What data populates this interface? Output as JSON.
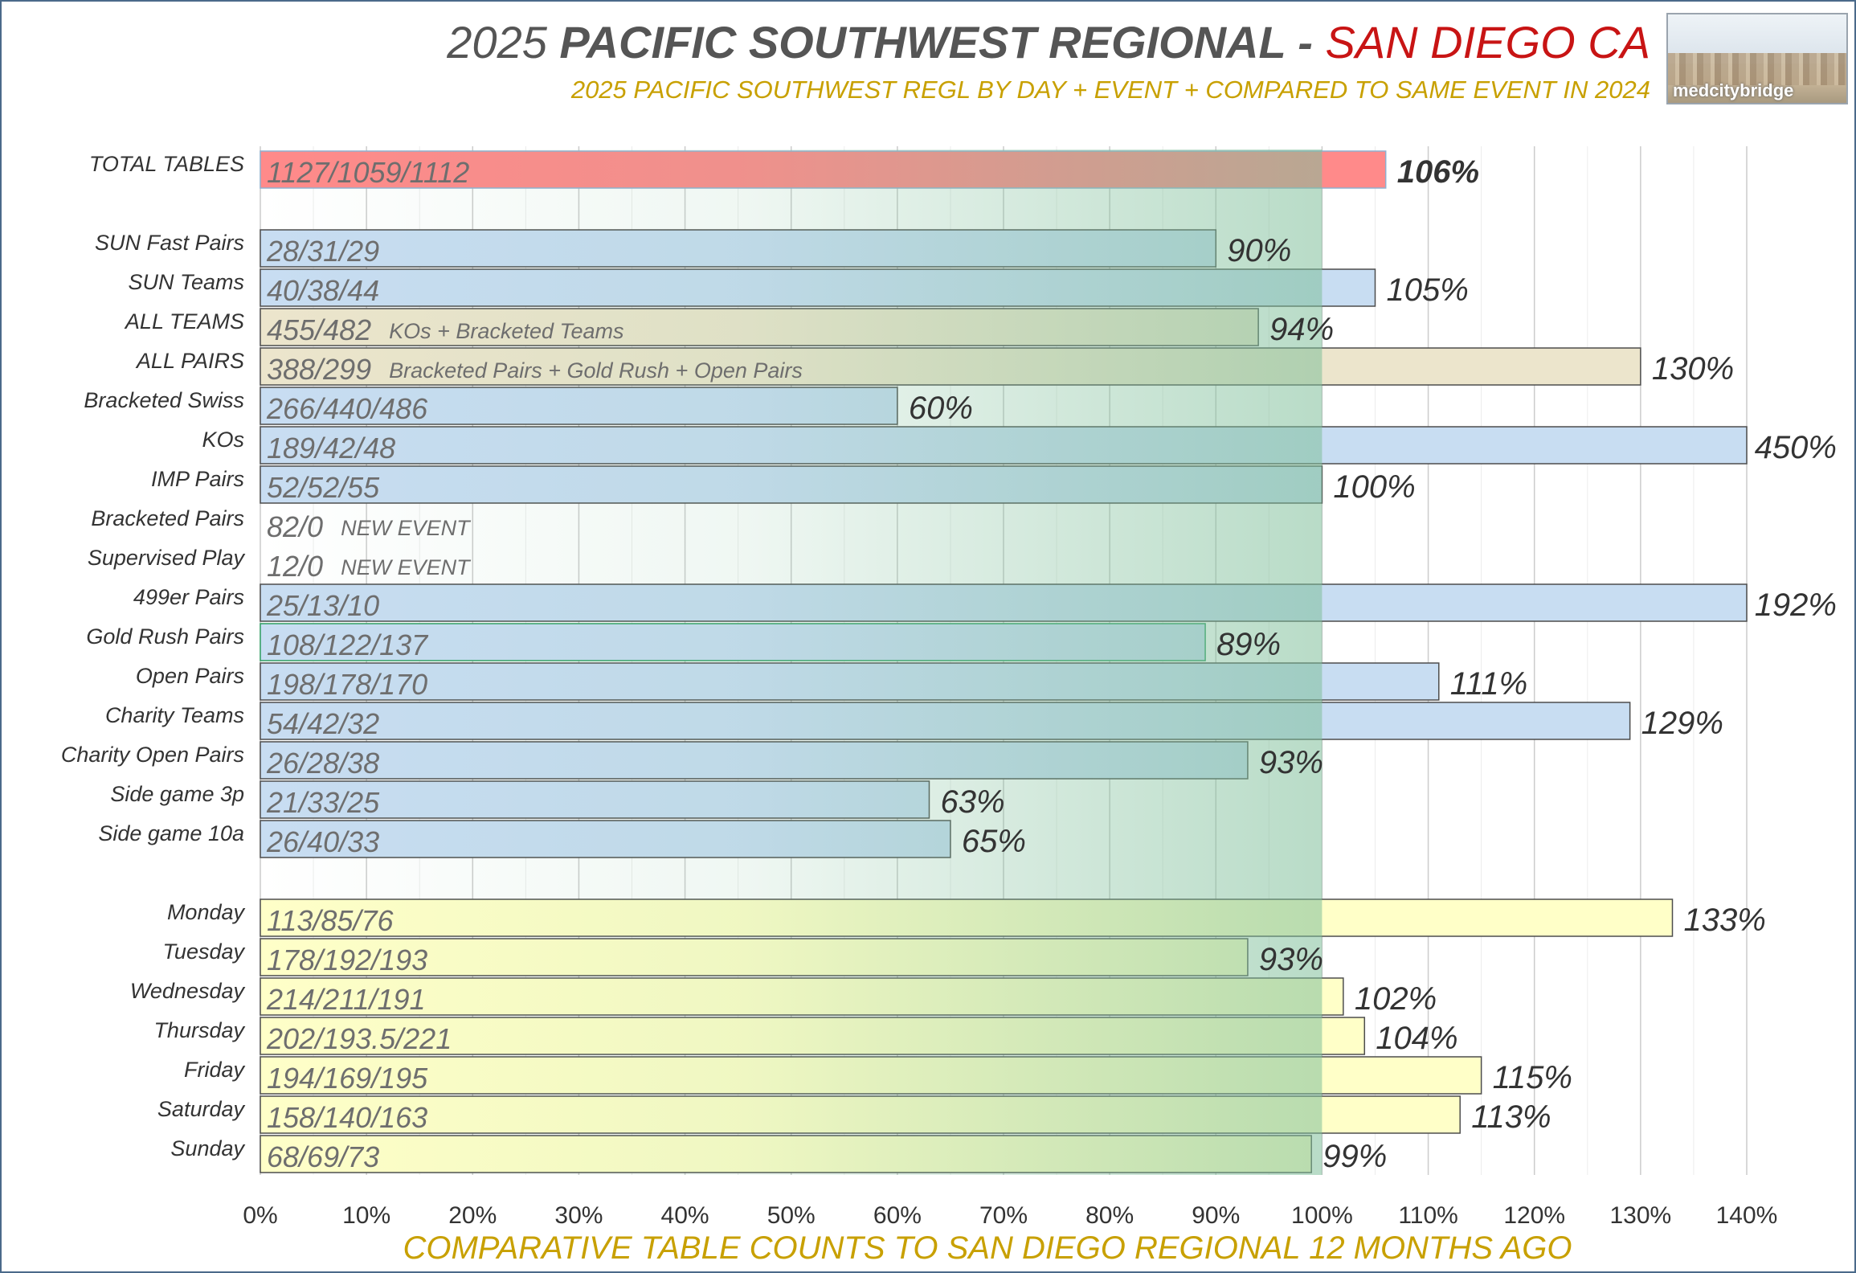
{
  "header": {
    "title_year": "2025",
    "title_main": "PACIFIC SOUTHWEST REGIONAL -",
    "title_city": "SAN DIEGO CA",
    "subtitle": "2025 PACIFIC SOUTHWEST REGL BY DAY + EVENT + COMPARED TO SAME EVENT IN 2024",
    "logo_text": "medcitybridge"
  },
  "colors": {
    "total_bar": "#ff8a8a",
    "total_label": "#c00000",
    "event_bar": "#c8ddf2",
    "aggregate_bar": "#ece5cc",
    "day_bar": "#ffffc8",
    "bar_border": "#4d4d4d",
    "gold_rush_border": "#2e9e62",
    "band_green": "#7fbf9a",
    "grid": "#cccccc"
  },
  "chart_data": {
    "type": "bar",
    "orientation": "horizontal",
    "xlabel": "COMPARATIVE TABLE COUNTS TO SAN DIEGO REGIONAL 12 MONTHS AGO",
    "xlim": [
      0,
      140
    ],
    "xticks": [
      "0%",
      "10%",
      "20%",
      "30%",
      "40%",
      "50%",
      "60%",
      "70%",
      "80%",
      "90%",
      "100%",
      "110%",
      "120%",
      "130%",
      "140%"
    ],
    "grid": true,
    "highlight_band": [
      0,
      100
    ],
    "rows": [
      {
        "category": "TOTAL TABLES",
        "counts": "1127/1059/1112",
        "note": "",
        "value": 106,
        "pct_label": "106%",
        "group": "total",
        "slot": 0
      },
      {
        "category": "SUN Fast Pairs",
        "counts": "28/31/29",
        "note": "",
        "value": 90,
        "pct_label": "90%",
        "group": "event",
        "slot": 2
      },
      {
        "category": "SUN Teams",
        "counts": "40/38/44",
        "note": "",
        "value": 105,
        "pct_label": "105%",
        "group": "event",
        "slot": 3
      },
      {
        "category": "ALL TEAMS",
        "counts": "455/482",
        "note": "KOs + Bracketed Teams",
        "value": 94,
        "pct_label": "94%",
        "group": "aggregate",
        "slot": 4
      },
      {
        "category": "ALL PAIRS",
        "counts": "388/299",
        "note": "Bracketed Pairs + Gold Rush + Open Pairs",
        "value": 130,
        "pct_label": "130%",
        "group": "aggregate",
        "slot": 5
      },
      {
        "category": "Bracketed Swiss",
        "counts": "266/440/486",
        "note": "",
        "value": 60,
        "pct_label": "60%",
        "group": "event",
        "slot": 6
      },
      {
        "category": "KOs",
        "counts": "189/42/48",
        "note": "",
        "value": 450,
        "pct_label": "450%",
        "group": "event",
        "slot": 7
      },
      {
        "category": "IMP Pairs",
        "counts": "52/52/55",
        "note": "",
        "value": 100,
        "pct_label": "100%",
        "group": "event",
        "slot": 8
      },
      {
        "category": "Bracketed Pairs",
        "counts": "82/0",
        "note": "NEW EVENT",
        "value": null,
        "pct_label": "",
        "group": "event",
        "slot": 9
      },
      {
        "category": "Supervised Play",
        "counts": "12/0",
        "note": "NEW EVENT",
        "value": null,
        "pct_label": "",
        "group": "event",
        "slot": 10
      },
      {
        "category": "499er Pairs",
        "counts": "25/13/10",
        "note": "",
        "value": 192,
        "pct_label": "192%",
        "group": "event",
        "slot": 11
      },
      {
        "category": "Gold Rush Pairs",
        "counts": "108/122/137",
        "note": "",
        "value": 89,
        "pct_label": "89%",
        "group": "event",
        "slot": 12
      },
      {
        "category": "Open Pairs",
        "counts": "198/178/170",
        "note": "",
        "value": 111,
        "pct_label": "111%",
        "group": "event",
        "slot": 13
      },
      {
        "category": "Charity Teams",
        "counts": "54/42/32",
        "note": "",
        "value": 129,
        "pct_label": "129%",
        "group": "event",
        "slot": 14
      },
      {
        "category": "Charity Open Pairs",
        "counts": "26/28/38",
        "note": "",
        "value": 93,
        "pct_label": "93%",
        "group": "event",
        "slot": 15
      },
      {
        "category": "Side game 3p",
        "counts": "21/33/25",
        "note": "",
        "value": 63,
        "pct_label": "63%",
        "group": "event",
        "slot": 16
      },
      {
        "category": "Side game 10a",
        "counts": "26/40/33",
        "note": "",
        "value": 65,
        "pct_label": "65%",
        "group": "event",
        "slot": 17
      },
      {
        "category": "Monday",
        "counts": "113/85/76",
        "note": "",
        "value": 133,
        "pct_label": "133%",
        "group": "day",
        "slot": 19
      },
      {
        "category": "Tuesday",
        "counts": "178/192/193",
        "note": "",
        "value": 93,
        "pct_label": "93%",
        "group": "day",
        "slot": 20
      },
      {
        "category": "Wednesday",
        "counts": "214/211/191",
        "note": "",
        "value": 102,
        "pct_label": "102%",
        "group": "day",
        "slot": 21
      },
      {
        "category": "Thursday",
        "counts": "202/193.5/221",
        "note": "",
        "value": 104,
        "pct_label": "104%",
        "group": "day",
        "slot": 22
      },
      {
        "category": "Friday",
        "counts": "194/169/195",
        "note": "",
        "value": 115,
        "pct_label": "115%",
        "group": "day",
        "slot": 23
      },
      {
        "category": "Saturday",
        "counts": "158/140/163",
        "note": "",
        "value": 113,
        "pct_label": "113%",
        "group": "day",
        "slot": 24
      },
      {
        "category": "Sunday",
        "counts": "68/69/73",
        "note": "",
        "value": 99,
        "pct_label": "99%",
        "group": "day",
        "slot": 25
      }
    ]
  }
}
